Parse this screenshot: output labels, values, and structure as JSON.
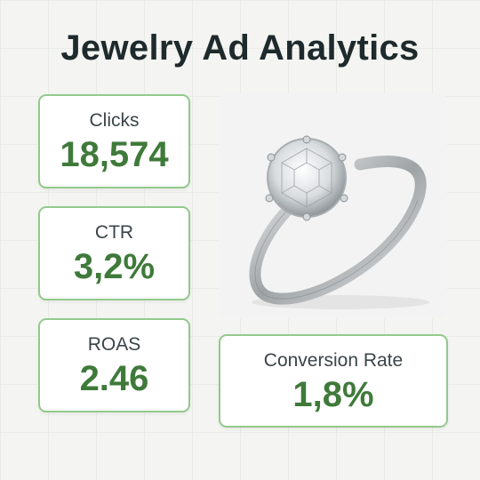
{
  "header": {
    "title": "Jewelry Ad Analytics"
  },
  "metrics": [
    {
      "label": "Clicks",
      "value": "18,574"
    },
    {
      "label": "CTR",
      "value": "3,2%"
    },
    {
      "label": "ROAS",
      "value": "2.46"
    },
    {
      "label": "Conversion Rate",
      "value": "1,8%"
    }
  ]
}
